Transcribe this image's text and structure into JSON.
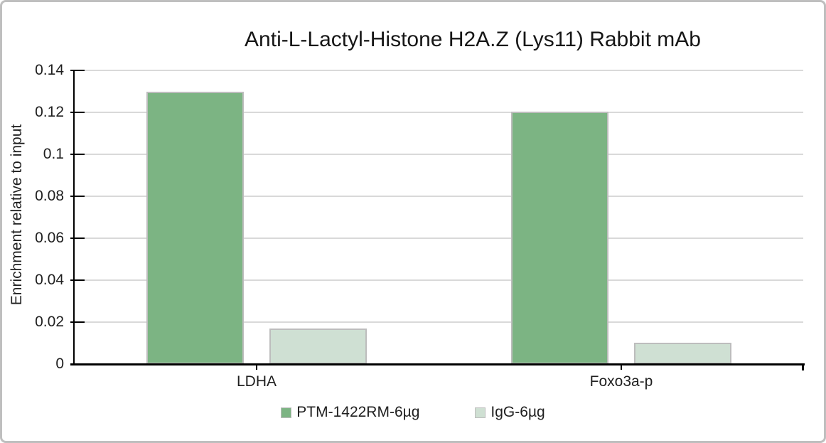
{
  "chart_data": {
    "type": "bar",
    "title": "Anti-L-Lactyl-Histone H2A.Z (Lys11) Rabbit mAb",
    "xlabel": "",
    "ylabel": "Enrichment relative to input",
    "categories": [
      "LDHA",
      "Foxo3a-p"
    ],
    "series": [
      {
        "name": "PTM-1422RM-6µg",
        "values": [
          0.13,
          0.1205
        ],
        "color": "#7cb483",
        "border_color": "#bdbdbd"
      },
      {
        "name": "IgG-6µg",
        "values": [
          0.017,
          0.0102
        ],
        "color": "#cfe0d3",
        "border_color": "#bdbdbd"
      }
    ],
    "ylim": [
      0,
      0.14
    ],
    "ytick_values": [
      0,
      0.02,
      0.04,
      0.06,
      0.08,
      0.1,
      0.12,
      0.14
    ],
    "ytick_labels": [
      "0",
      "0.02",
      "0.04",
      "0.06",
      "0.08",
      "0.1",
      "0.12",
      "0.14"
    ],
    "grid": "horizontal",
    "gridline_color": "#d9d9d9",
    "axis_color": "#000000",
    "text_color": "#1f1f1f",
    "legend_position": "bottom",
    "legend_labels": [
      "PTM-1422RM-6µg",
      "IgG-6µg"
    ]
  }
}
